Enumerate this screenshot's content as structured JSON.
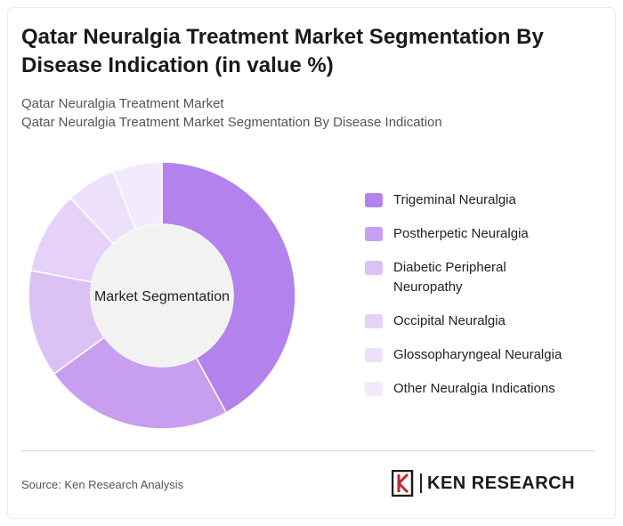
{
  "title": "Qatar Neuralgia Treatment Market Segmentation By Disease Indication (in value %)",
  "subtitle_line1": "Qatar Neuralgia Treatment Market",
  "subtitle_line2": "Qatar Neuralgia Treatment Market Segmentation By Disease Indication",
  "source": "Source: Ken Research Analysis",
  "brand": "KEN RESEARCH",
  "chart_data": {
    "type": "pie",
    "center_label": "Market Segmentation",
    "legend_position": "right",
    "series": [
      {
        "name": "Trigeminal Neuralgia",
        "value": 42,
        "color": "#b382ec"
      },
      {
        "name": "Postherpetic Neuralgia",
        "value": 23,
        "color": "#c79ef0"
      },
      {
        "name": "Diabetic Peripheral Neuropathy",
        "value": 13,
        "color": "#dcc1f5"
      },
      {
        "name": "Occipital Neuralgia",
        "value": 10,
        "color": "#e6d2f8"
      },
      {
        "name": "Glossopharyngeal Neuralgia",
        "value": 6,
        "color": "#ede0fa"
      },
      {
        "name": "Other Neuralgia Indications",
        "value": 6,
        "color": "#f3ebfc"
      }
    ]
  }
}
